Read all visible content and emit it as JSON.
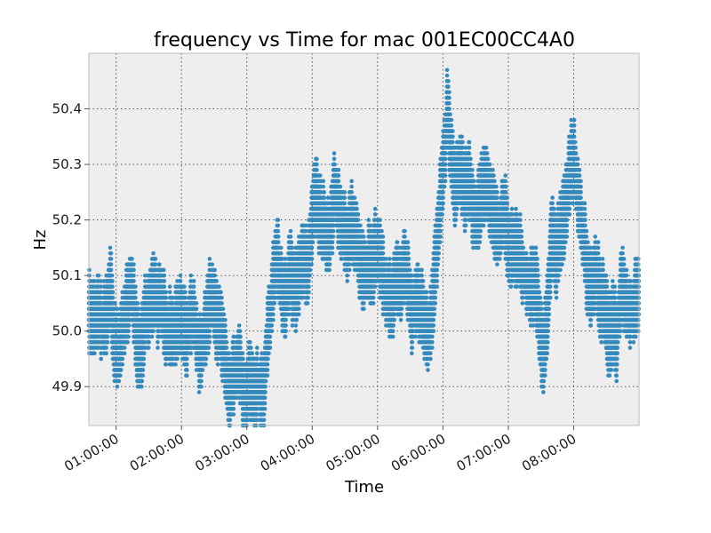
{
  "chart_data": {
    "type": "scatter",
    "title": "frequency vs Time for mac 001EC00CC4A0",
    "xlabel": "Time",
    "ylabel": "Hz",
    "x_unit": "time of day",
    "xlim": [
      "00:35:00",
      "09:00:00"
    ],
    "ylim": [
      49.83,
      50.5
    ],
    "x_ticks": [
      "01:00:00",
      "02:00:00",
      "03:00:00",
      "04:00:00",
      "05:00:00",
      "06:00:00",
      "07:00:00",
      "08:00:00"
    ],
    "y_ticks": [
      "49.9",
      "50.0",
      "50.1",
      "50.2",
      "50.3",
      "50.4"
    ],
    "grid": true,
    "legend": "none",
    "colors": {
      "points": "#348abd",
      "plot_background": "#eeeeee",
      "grid": "#444444",
      "frame": "#bcbcbc"
    },
    "series": [
      {
        "trend": [
          [
            "00:35:00",
            50.03
          ],
          [
            "00:39:00",
            50.01
          ],
          [
            "00:43:00",
            50.02
          ],
          [
            "00:47:00",
            50.0
          ],
          [
            "00:51:00",
            50.03
          ],
          [
            "00:55:00",
            50.08
          ],
          [
            "00:58:00",
            50.0
          ],
          [
            "01:02:00",
            49.96
          ],
          [
            "01:06:00",
            50.01
          ],
          [
            "01:10:00",
            50.06
          ],
          [
            "01:14:00",
            50.1
          ],
          [
            "01:18:00",
            50.0
          ],
          [
            "01:22:00",
            49.94
          ],
          [
            "01:26:00",
            50.02
          ],
          [
            "01:30:00",
            50.05
          ],
          [
            "01:34:00",
            50.07
          ],
          [
            "01:38:00",
            50.05
          ],
          [
            "01:42:00",
            50.03
          ],
          [
            "01:46:00",
            49.99
          ],
          [
            "01:50:00",
            50.02
          ],
          [
            "01:55:00",
            50.03
          ],
          [
            "02:00:00",
            50.04
          ],
          [
            "02:04:00",
            49.98
          ],
          [
            "02:08:00",
            50.02
          ],
          [
            "02:12:00",
            50.0
          ],
          [
            "02:16:00",
            49.96
          ],
          [
            "02:20:00",
            49.98
          ],
          [
            "02:24:00",
            50.03
          ],
          [
            "02:28:00",
            50.06
          ],
          [
            "02:32:00",
            50.02
          ],
          [
            "02:36:00",
            49.98
          ],
          [
            "02:40:00",
            49.93
          ],
          [
            "02:44:00",
            49.88
          ],
          [
            "02:48:00",
            49.9
          ],
          [
            "02:52:00",
            49.92
          ],
          [
            "02:56:00",
            49.88
          ],
          [
            "03:00:00",
            49.9
          ],
          [
            "03:04:00",
            49.94
          ],
          [
            "03:08:00",
            49.9
          ],
          [
            "03:12:00",
            49.91
          ],
          [
            "03:16:00",
            49.92
          ],
          [
            "03:20:00",
            50.02
          ],
          [
            "03:24:00",
            50.08
          ],
          [
            "03:28:00",
            50.14
          ],
          [
            "03:32:00",
            50.1
          ],
          [
            "03:36:00",
            50.05
          ],
          [
            "03:40:00",
            50.09
          ],
          [
            "03:44:00",
            50.07
          ],
          [
            "03:48:00",
            50.11
          ],
          [
            "03:52:00",
            50.14
          ],
          [
            "03:56:00",
            50.1
          ],
          [
            "04:00:00",
            50.2
          ],
          [
            "04:04:00",
            50.26
          ],
          [
            "04:08:00",
            50.22
          ],
          [
            "04:12:00",
            50.17
          ],
          [
            "04:16:00",
            50.15
          ],
          [
            "04:20:00",
            50.24
          ],
          [
            "04:24:00",
            50.22
          ],
          [
            "04:28:00",
            50.2
          ],
          [
            "04:32:00",
            50.17
          ],
          [
            "04:36:00",
            50.18
          ],
          [
            "04:40:00",
            50.16
          ],
          [
            "04:44:00",
            50.13
          ],
          [
            "04:48:00",
            50.12
          ],
          [
            "04:52:00",
            50.14
          ],
          [
            "04:56:00",
            50.11
          ],
          [
            "05:00:00",
            50.15
          ],
          [
            "05:04:00",
            50.12
          ],
          [
            "05:08:00",
            50.05
          ],
          [
            "05:12:00",
            50.02
          ],
          [
            "05:16:00",
            50.06
          ],
          [
            "05:20:00",
            50.07
          ],
          [
            "05:24:00",
            50.1
          ],
          [
            "05:28:00",
            50.08
          ],
          [
            "05:32:00",
            50.03
          ],
          [
            "05:36:00",
            50.06
          ],
          [
            "05:40:00",
            50.04
          ],
          [
            "05:44:00",
            50.03
          ],
          [
            "05:48:00",
            50.0
          ],
          [
            "05:52:00",
            50.09
          ],
          [
            "05:56:00",
            50.18
          ],
          [
            "06:00:00",
            50.28
          ],
          [
            "06:04:00",
            50.4
          ],
          [
            "06:08:00",
            50.32
          ],
          [
            "06:12:00",
            50.26
          ],
          [
            "06:16:00",
            50.28
          ],
          [
            "06:20:00",
            50.25
          ],
          [
            "06:24:00",
            50.27
          ],
          [
            "06:28:00",
            50.22
          ],
          [
            "06:32:00",
            50.24
          ],
          [
            "06:36:00",
            50.25
          ],
          [
            "06:40:00",
            50.27
          ],
          [
            "06:44:00",
            50.22
          ],
          [
            "06:48:00",
            50.2
          ],
          [
            "06:52:00",
            50.18
          ],
          [
            "06:56:00",
            50.23
          ],
          [
            "07:00:00",
            50.15
          ],
          [
            "07:04:00",
            50.18
          ],
          [
            "07:08:00",
            50.16
          ],
          [
            "07:12:00",
            50.12
          ],
          [
            "07:16:00",
            50.1
          ],
          [
            "07:20:00",
            50.08
          ],
          [
            "07:24:00",
            50.09
          ],
          [
            "07:28:00",
            50.02
          ],
          [
            "07:32:00",
            49.98
          ],
          [
            "07:36:00",
            50.05
          ],
          [
            "07:40:00",
            50.18
          ],
          [
            "07:44:00",
            50.15
          ],
          [
            "07:48:00",
            50.18
          ],
          [
            "07:52:00",
            50.22
          ],
          [
            "07:56:00",
            50.28
          ],
          [
            "08:00:00",
            50.32
          ],
          [
            "08:04:00",
            50.24
          ],
          [
            "08:08:00",
            50.18
          ],
          [
            "08:12:00",
            50.1
          ],
          [
            "08:16:00",
            50.05
          ],
          [
            "08:20:00",
            50.1
          ],
          [
            "08:24:00",
            50.06
          ],
          [
            "08:28:00",
            50.04
          ],
          [
            "08:32:00",
            50.0
          ],
          [
            "08:36:00",
            50.03
          ],
          [
            "08:40:00",
            49.99
          ],
          [
            "08:44:00",
            50.05
          ],
          [
            "08:48:00",
            50.02
          ],
          [
            "08:52:00",
            50.0
          ],
          [
            "08:56:00",
            50.04
          ],
          [
            "09:00:00",
            50.06
          ]
        ]
      }
    ]
  }
}
